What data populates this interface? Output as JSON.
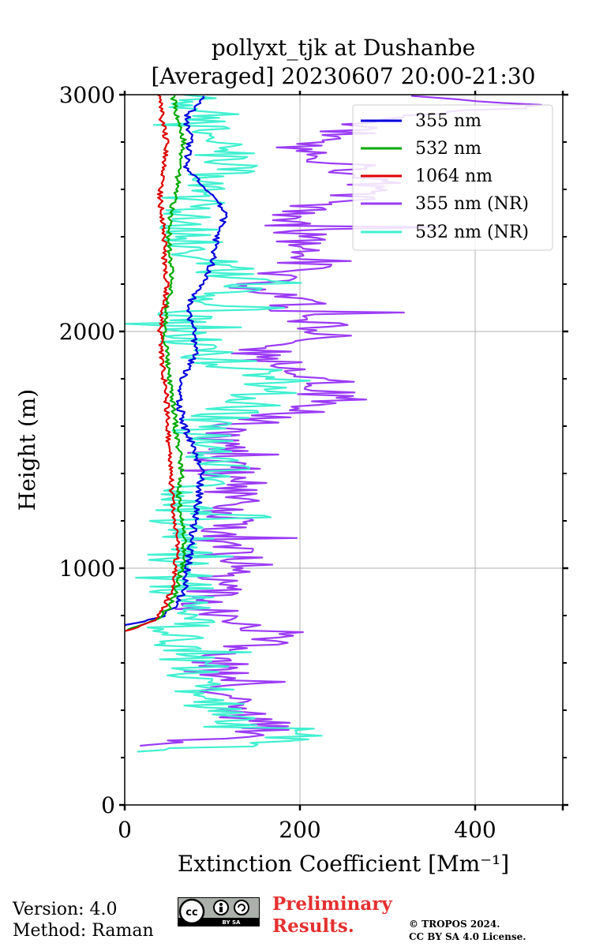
{
  "chart_data": {
    "type": "line",
    "title_line1": "pollyxt_tjk at Dushanbe",
    "title_line2": "[Averaged] 20230607 20:00-21:30",
    "xlabel": "Extinction Coefficient [Mm⁻¹]",
    "ylabel": "Height (m)",
    "xlim": [
      0,
      500
    ],
    "ylim": [
      0,
      3000
    ],
    "xticks": [
      "0",
      "200",
      "400"
    ],
    "xtick_values": [
      0,
      200,
      400
    ],
    "yticks": [
      "0",
      "1000",
      "2000",
      "3000"
    ],
    "ytick_values": [
      0,
      1000,
      2000,
      3000
    ],
    "grid": true,
    "legend_position": "top-right",
    "series": [
      {
        "name": "355 nm",
        "color": "#0000dd",
        "jitter": 4,
        "heights": [
          760,
          790,
          830,
          900,
          1000,
          1100,
          1200,
          1300,
          1400,
          1500,
          1600,
          1700,
          1800,
          1900,
          2000,
          2100,
          2200,
          2300,
          2400,
          2500,
          2600,
          2700,
          2800,
          2900,
          3000
        ],
        "values": [
          0,
          40,
          55,
          68,
          72,
          75,
          80,
          85,
          88,
          80,
          68,
          62,
          65,
          80,
          80,
          70,
          90,
          100,
          105,
          115,
          95,
          70,
          75,
          70,
          90
        ]
      },
      {
        "name": "532 nm",
        "color": "#00aa00",
        "jitter": 3,
        "heights": [
          740,
          780,
          830,
          900,
          1000,
          1100,
          1200,
          1300,
          1400,
          1500,
          1600,
          1700,
          1800,
          1900,
          2000,
          2100,
          2200,
          2300,
          2400,
          2500,
          2600,
          2700,
          2800,
          2900,
          3000
        ],
        "values": [
          0,
          35,
          50,
          58,
          65,
          68,
          65,
          62,
          65,
          62,
          58,
          55,
          50,
          48,
          45,
          48,
          55,
          52,
          50,
          52,
          60,
          62,
          68,
          60,
          55
        ]
      },
      {
        "name": "1064 nm",
        "color": "#dd0000",
        "jitter": 3,
        "heights": [
          735,
          770,
          830,
          900,
          1000,
          1100,
          1200,
          1300,
          1400,
          1500,
          1600,
          1700,
          1800,
          1900,
          2000,
          2100,
          2200,
          2300,
          2400,
          2500,
          2600,
          2700,
          2800,
          2900,
          3000
        ],
        "values": [
          0,
          30,
          45,
          52,
          58,
          60,
          58,
          55,
          52,
          50,
          50,
          48,
          45,
          42,
          40,
          45,
          48,
          45,
          45,
          42,
          40,
          45,
          48,
          42,
          40
        ]
      },
      {
        "name": "355 nm (NR)",
        "color": "#9b3bf5",
        "jitter": 40,
        "heights": [
          250,
          290,
          330,
          400,
          450,
          500,
          600,
          680,
          720,
          800,
          900,
          1000,
          1100,
          1200,
          1300,
          1400,
          1500,
          1600,
          1700,
          1800,
          1900,
          2000,
          2100,
          2200,
          2300,
          2400,
          2500,
          2600,
          2700,
          2800,
          2900,
          2960,
          3000
        ],
        "values": [
          5,
          130,
          170,
          110,
          130,
          120,
          100,
          160,
          180,
          100,
          90,
          140,
          100,
          120,
          130,
          120,
          100,
          130,
          250,
          200,
          150,
          240,
          200,
          150,
          220,
          200,
          180,
          300,
          250,
          200,
          300,
          480,
          350
        ]
      },
      {
        "name": "532 nm (NR)",
        "color": "#40f0d0",
        "jitter": 40,
        "heights": [
          225,
          260,
          290,
          350,
          400,
          450,
          500,
          600,
          700,
          800,
          900,
          1000,
          1100,
          1200,
          1300,
          1400,
          1500,
          1600,
          1700,
          1800,
          1900,
          2000,
          2100,
          2200,
          2300,
          2400,
          2500,
          2600,
          2700,
          2800,
          2900,
          3000
        ],
        "values": [
          0,
          180,
          200,
          140,
          110,
          100,
          90,
          80,
          70,
          60,
          65,
          60,
          70,
          60,
          75,
          110,
          90,
          80,
          150,
          180,
          90,
          70,
          80,
          140,
          90,
          70,
          85,
          80,
          130,
          90,
          100,
          80
        ]
      }
    ]
  },
  "footer": {
    "version": "Version: 4.0",
    "method": "Method: Raman",
    "preliminary_1": "Preliminary",
    "preliminary_2": "Results.",
    "copyright_1": "© TROPOS 2024.",
    "copyright_2": "CC BY SA 4.0 License.",
    "cc_badge_label": "BY SA"
  }
}
